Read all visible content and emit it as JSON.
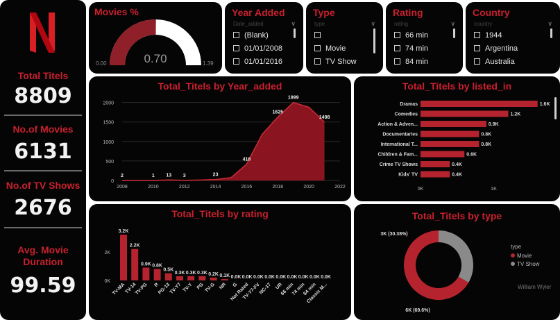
{
  "kpis": {
    "total_titles_label": "Total Titels",
    "total_titles_value": "8809",
    "movies_label": "No.of Movies",
    "movies_value": "6131",
    "tv_label": "No.of TV Shows",
    "tv_value": "2676",
    "duration_label": "Avg. Movie Duration",
    "duration_value": "99.59"
  },
  "gauge": {
    "title": "Movies %",
    "value": "0.70",
    "value_num": 0.7,
    "min": "0.00",
    "min_num": 0,
    "max": "1.39",
    "max_num": 1.39
  },
  "slicers": {
    "year": {
      "title": "Year Added",
      "sub": "Date_added",
      "items": [
        "(Blank)",
        "01/01/2008",
        "01/01/2016"
      ]
    },
    "type": {
      "title": "Type",
      "sub": "type",
      "items": [
        "",
        "Movie",
        "TV Show"
      ]
    },
    "rating": {
      "title": "Rating",
      "sub": "rating",
      "items": [
        "66 min",
        "74 min",
        "84 min"
      ]
    },
    "country": {
      "title": "Country",
      "sub": "country",
      "items": [
        "1944",
        "Argentina",
        "Australia"
      ]
    }
  },
  "colors": {
    "accent": "#c9202e",
    "bar": "#b5232e",
    "line": "#c62a36",
    "area": "#8a1520",
    "grey": "#8a8a8a",
    "bg": "#050505"
  },
  "chart_data": [
    {
      "type": "area",
      "title": "Total_Titels by Year_added",
      "xlabel": "",
      "ylabel": "",
      "x": [
        2008,
        2009,
        2010,
        2011,
        2012,
        2013,
        2014,
        2015,
        2016,
        2017,
        2018,
        2019,
        2020,
        2021
      ],
      "y": [
        2,
        2,
        1,
        13,
        3,
        10,
        23,
        73,
        418,
        1185,
        1625,
        1999,
        1878,
        1498
      ],
      "data_labels": [
        {
          "x": 2008,
          "label": "2"
        },
        {
          "x": 2010,
          "label": "1"
        },
        {
          "x": 2011,
          "label": "13"
        },
        {
          "x": 2012,
          "label": "3"
        },
        {
          "x": 2014,
          "label": "23"
        },
        {
          "x": 2016,
          "label": "418"
        },
        {
          "x": 2018,
          "label": "1625"
        },
        {
          "x": 2019,
          "label": "1999"
        },
        {
          "x": 2021,
          "label": "1498"
        }
      ],
      "xticks": [
        2008,
        2010,
        2012,
        2014,
        2016,
        2018,
        2020,
        2022
      ],
      "yticks": [
        0,
        500,
        1000,
        1500,
        2000
      ],
      "xlim": [
        2008,
        2022
      ],
      "ylim": [
        0,
        2100
      ]
    },
    {
      "type": "bar",
      "orientation": "horizontal",
      "title": "Total_Titels by listed_in",
      "categories": [
        "Dramas",
        "Comedies",
        "Action & Adven...",
        "Documentaries",
        "International T...",
        "Children & Fam...",
        "Crime TV Shows",
        "Kids' TV"
      ],
      "values": [
        1600,
        1200,
        900,
        800,
        800,
        600,
        400,
        400
      ],
      "labels": [
        "1.6K",
        "1.2K",
        "0.9K",
        "0.8K",
        "0.8K",
        "0.6K",
        "0.4K",
        "0.4K"
      ],
      "xticks": [
        "0K",
        "1K"
      ],
      "xlim": [
        0,
        1650
      ]
    },
    {
      "type": "bar",
      "title": "Total_Titels by rating",
      "categories": [
        "TV-MA",
        "TV-14",
        "TV-PG",
        "R",
        "PG-13",
        "TV-Y7",
        "TV-Y",
        "PG",
        "TV-G",
        "NR",
        "G",
        "Not Rated",
        "TV-Y7-FV",
        "NC-17",
        "UR",
        "66 min",
        "74 min",
        "84 min",
        "Classic M..."
      ],
      "values": [
        3200,
        2200,
        900,
        800,
        500,
        300,
        300,
        300,
        200,
        100,
        0,
        0,
        0,
        0,
        0,
        0,
        0,
        0,
        0
      ],
      "labels": [
        "3.2K",
        "2.2K",
        "0.9K",
        "0.8K",
        "0.5K",
        "0.3K",
        "0.3K",
        "0.3K",
        "0.2K",
        "0.1K",
        "0.0K",
        "0.0K",
        "0.0K",
        "0.0K",
        "0.0K",
        "0.0K",
        "0.0K",
        "0.0K",
        "0.0K"
      ],
      "yticks": [
        "0K",
        "2K"
      ],
      "ylim": [
        0,
        3400
      ]
    },
    {
      "type": "pie",
      "title": "Total_Titels by type",
      "categories": [
        "Movie",
        "TV Show"
      ],
      "values": [
        6000,
        3000
      ],
      "labels": [
        "6K (69.6%)",
        "3K (30.38%)"
      ],
      "legend_title": "type",
      "legend_position": "right",
      "extra_text": "William Wyler"
    }
  ]
}
